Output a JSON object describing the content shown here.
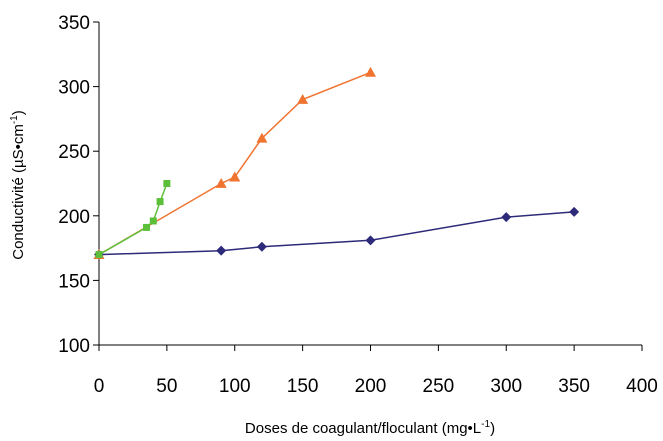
{
  "chart_data": {
    "type": "line",
    "title": "",
    "xlabel": {
      "base": "Doses de coagulant/floculant (mg•L",
      "sup": "-1",
      "end": ")"
    },
    "ylabel": {
      "base": "Conductivité (µS•cm",
      "sup": "-1",
      "end": ")"
    },
    "xlim": [
      0,
      400
    ],
    "ylim": [
      100,
      350
    ],
    "xticks": [
      0,
      50,
      100,
      150,
      200,
      250,
      300,
      350,
      400
    ],
    "yticks": [
      100,
      150,
      200,
      250,
      300,
      350
    ],
    "grid": false,
    "legend": "none",
    "series": [
      {
        "marker": "diamond",
        "color": "#2e2a7a",
        "x": [
          0,
          90,
          120,
          200,
          300,
          350
        ],
        "y": [
          170,
          173,
          176,
          181,
          199,
          203
        ]
      },
      {
        "marker": "triangle",
        "color": "#f07330",
        "x": [
          0,
          90,
          100,
          120,
          150,
          200
        ],
        "y": [
          170,
          225,
          230,
          260,
          290,
          311
        ]
      },
      {
        "marker": "square",
        "color": "#5cbf3a",
        "x": [
          0,
          35,
          40,
          45,
          50
        ],
        "y": [
          170,
          191,
          196,
          211,
          225
        ]
      }
    ]
  }
}
